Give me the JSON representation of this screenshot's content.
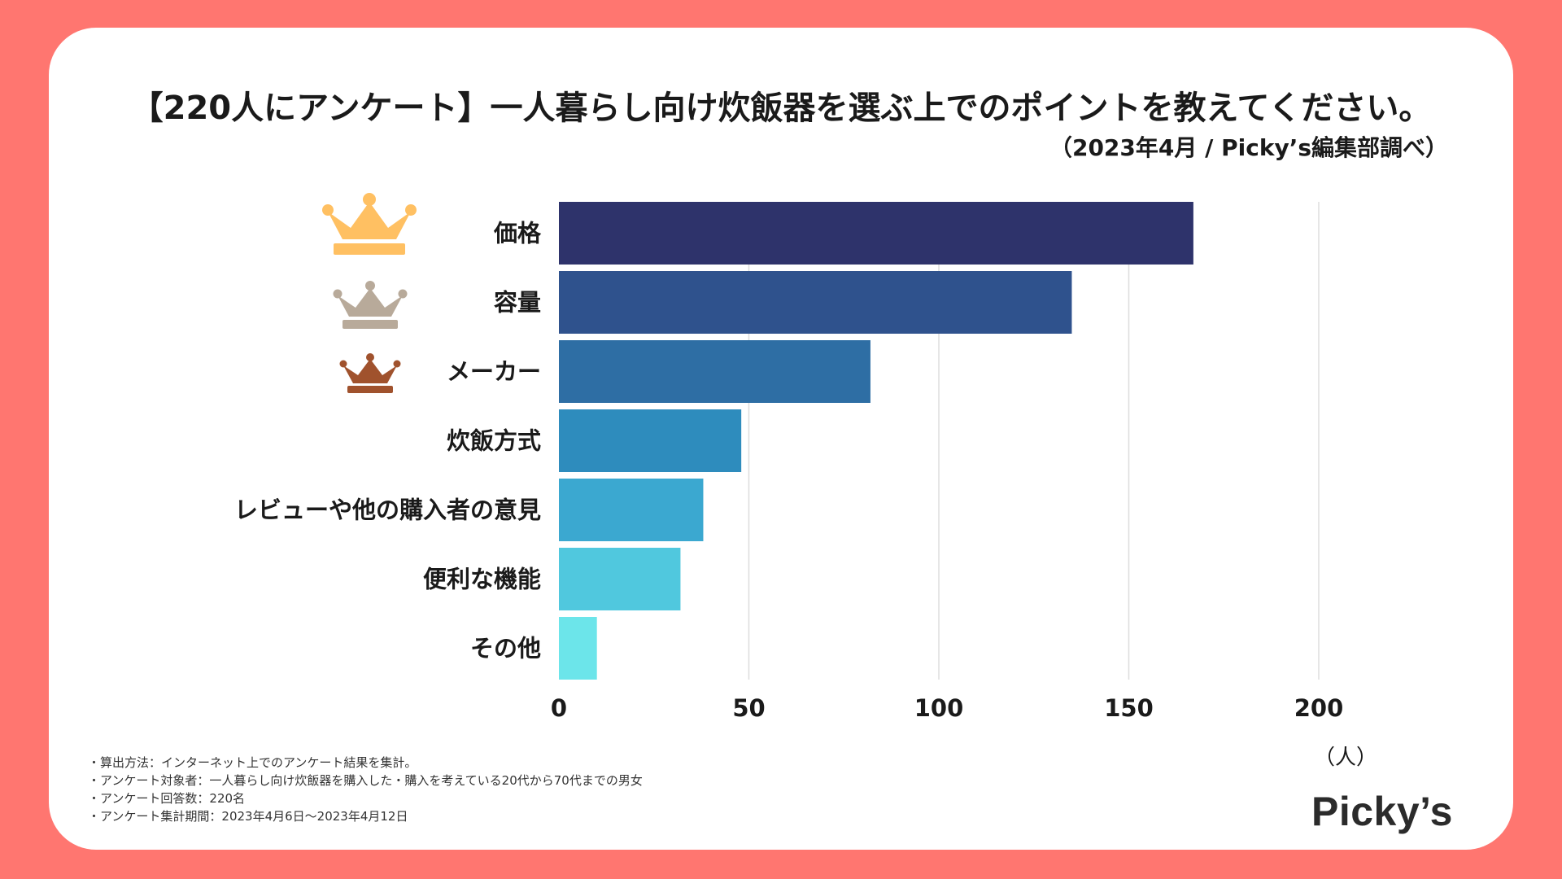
{
  "header": {
    "title": "【220人にアンケート】一人暮らし向け炊飯器を選ぶ上でのポイントを教えてください。",
    "subtitle": "（2023年4月 / Picky’s編集部調べ）"
  },
  "colors": {
    "background": "#ff7670",
    "card": "#ffffff",
    "gold": "#ffc062",
    "silver": "#b8aa9a",
    "bronze": "#a0522d",
    "bars": [
      "#2e336b",
      "#2f528d",
      "#2e6ea4",
      "#2e8cbd",
      "#3ba8d0",
      "#50c8de",
      "#6ce5ea"
    ],
    "grid": "#dddddd"
  },
  "crowns": [
    {
      "rank": 1,
      "icon": "gold-crown-icon"
    },
    {
      "rank": 2,
      "icon": "silver-crown-icon"
    },
    {
      "rank": 3,
      "icon": "bronze-crown-icon"
    }
  ],
  "chart_data": {
    "type": "bar",
    "orientation": "horizontal",
    "title": "【220人にアンケート】一人暮らし向け炊飯器を選ぶ上でのポイントを教えてください。",
    "categories": [
      "価格",
      "容量",
      "メーカー",
      "炊飯方式",
      "レビューや他の購入者の意見",
      "便利な機能",
      "その他"
    ],
    "values": [
      167,
      135,
      82,
      48,
      38,
      32,
      10
    ],
    "xlim": [
      0,
      220
    ],
    "xticks": [
      0,
      50,
      100,
      150,
      200
    ],
    "xlabel": "（人）",
    "ylabel": "",
    "grid": true
  },
  "notes": [
    "・算出方法：インターネット上でのアンケート結果を集計。",
    "・アンケート対象者：一人暮らし向け炊飯器を購入した・購入を考えている20代から70代までの男女",
    "・アンケート回答数：220名",
    "・アンケート集計期間：2023年4月6日〜2023年4月12日"
  ],
  "logo": "Picky’s"
}
